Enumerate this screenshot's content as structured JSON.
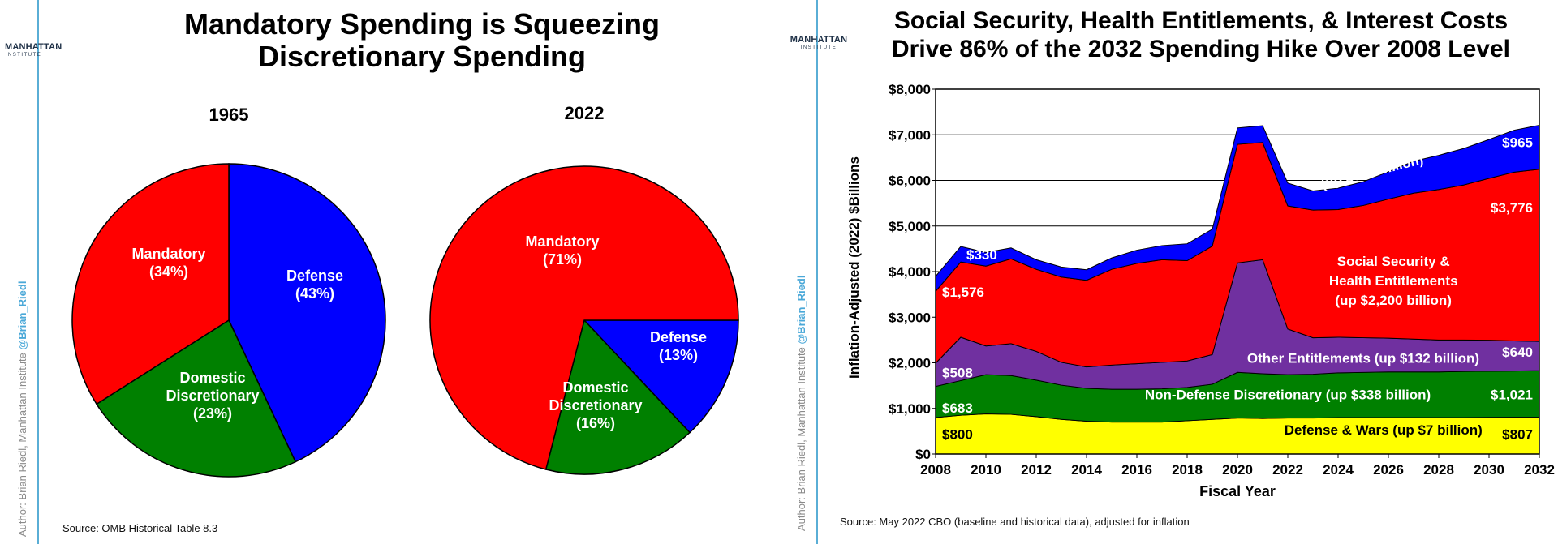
{
  "left": {
    "logo": {
      "line1": "MANHATTAN",
      "line2": "INSTITUTE"
    },
    "credit": {
      "author": "Author: Brian Riedl, Manhattan Institute",
      "handle": "@Brian_Riedl"
    },
    "title_line1": "Mandatory Spending is Squeezing",
    "title_line2": "Discretionary Spending",
    "source": "Source: OMB Historical Table 8.3"
  },
  "right": {
    "logo": {
      "line1": "MANHATTAN",
      "line2": "INSTITUTE"
    },
    "credit": {
      "author": "Author: Brian Riedl, Manhattan Institute",
      "handle": "@Brian_Riedl"
    },
    "title_line1": "Social Security, Health Entitlements, & Interest Costs",
    "title_line2": "Drive 86% of the 2032 Spending Hike Over 2008 Level",
    "source": "Source: May 2022 CBO (baseline and historical data), adjusted for inflation"
  },
  "chart_data": [
    {
      "type": "pie",
      "title": "1965",
      "slices": [
        {
          "label": "Defense",
          "pct_label": "(43%)",
          "value": 43,
          "color": "#0000ff"
        },
        {
          "label": "Domestic Discretionary",
          "pct_label": "(23%)",
          "value": 23,
          "color": "#008000"
        },
        {
          "label": "Mandatory",
          "pct_label": "(34%)",
          "value": 34,
          "color": "#ff0000"
        }
      ]
    },
    {
      "type": "pie",
      "title": "2022",
      "slices": [
        {
          "label": "Defense",
          "pct_label": "(13%)",
          "value": 13,
          "color": "#0000ff"
        },
        {
          "label": "Domestic Discretionary",
          "pct_label": "(16%)",
          "value": 16,
          "color": "#008000"
        },
        {
          "label": "Mandatory",
          "pct_label": "(71%)",
          "value": 71,
          "color": "#ff0000"
        }
      ]
    },
    {
      "type": "area",
      "stacked": true,
      "xlabel": "Fiscal Year",
      "ylabel": "Inflation-Adjusted (2022) $Billions",
      "x": [
        2008,
        2009,
        2010,
        2011,
        2012,
        2013,
        2014,
        2015,
        2016,
        2017,
        2018,
        2019,
        2020,
        2021,
        2022,
        2023,
        2024,
        2025,
        2026,
        2027,
        2028,
        2029,
        2030,
        2031,
        2032
      ],
      "xticks": [
        "2008",
        "2010",
        "2012",
        "2014",
        "2016",
        "2018",
        "2020",
        "2022",
        "2024",
        "2026",
        "2028",
        "2030",
        "2032"
      ],
      "ylim": [
        0,
        8000
      ],
      "yticks": [
        "$0",
        "$1,000",
        "$2,000",
        "$3,000",
        "$4,000",
        "$5,000",
        "$6,000",
        "$7,000",
        "$8,000"
      ],
      "grid": true,
      "series": [
        {
          "name": "Defense & Wars (up $7 billion)",
          "color": "#ffff00",
          "values": [
            800,
            850,
            880,
            870,
            820,
            760,
            720,
            700,
            700,
            700,
            730,
            760,
            790,
            780,
            790,
            790,
            800,
            800,
            800,
            800,
            800,
            800,
            805,
            806,
            807
          ]
        },
        {
          "name": "Non-Defense Discretionary (up $338 billion)",
          "color": "#008000",
          "values": [
            683,
            760,
            860,
            850,
            800,
            750,
            720,
            720,
            720,
            730,
            730,
            770,
            1000,
            980,
            950,
            960,
            980,
            990,
            1000,
            1000,
            1000,
            1010,
            1010,
            1015,
            1021
          ]
        },
        {
          "name": "Other Entitlements (up $132 billion)",
          "color": "#7030a0",
          "values": [
            508,
            950,
            630,
            700,
            630,
            500,
            470,
            530,
            560,
            580,
            580,
            650,
            2400,
            2500,
            1000,
            800,
            780,
            760,
            740,
            720,
            700,
            690,
            680,
            660,
            640
          ]
        },
        {
          "name": "Social Security & Health Entitlements (up $2,200 billion)",
          "color": "#ff0000",
          "values": [
            1576,
            1650,
            1750,
            1860,
            1800,
            1870,
            1900,
            2100,
            2200,
            2250,
            2200,
            2380,
            2600,
            2570,
            2700,
            2800,
            2800,
            2900,
            3050,
            3200,
            3300,
            3400,
            3550,
            3700,
            3776
          ]
        },
        {
          "name": "Net Interest (up $635 billion)",
          "color": "#0000ff",
          "values": [
            330,
            340,
            300,
            240,
            210,
            220,
            230,
            250,
            290,
            310,
            370,
            370,
            360,
            370,
            500,
            420,
            470,
            520,
            600,
            700,
            750,
            800,
            850,
            920,
            965
          ]
        }
      ],
      "annotations": {
        "start": [
          "$800",
          "$683",
          "$508",
          "$1,576",
          "$330"
        ],
        "end": [
          "$807",
          "$1,021",
          "$640",
          "$3,776",
          "$965"
        ]
      }
    }
  ]
}
